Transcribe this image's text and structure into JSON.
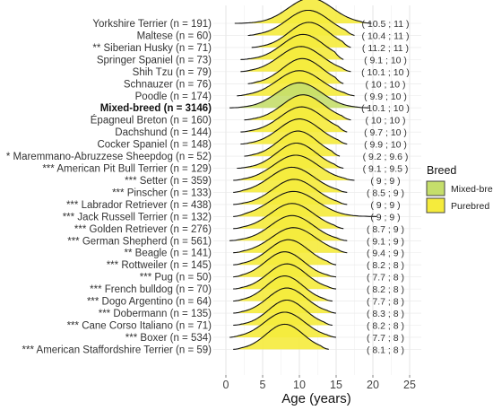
{
  "chart_data": {
    "type": "ridgeline",
    "xlabel": "Age (years)",
    "x_ticks": [
      0,
      5,
      10,
      15,
      20,
      25
    ],
    "xlim": [
      0,
      25
    ],
    "grid": true,
    "legend": {
      "title": "Breed",
      "position": "right",
      "entries": [
        {
          "label": "Mixed-breed",
          "color": "#c5de6b"
        },
        {
          "label": "Purebred",
          "color": "#f5eb3c"
        }
      ]
    },
    "series": [
      {
        "label": "Yorkshire Terrier (n = 191)",
        "stat": "( 10.5 ; 11 )",
        "group": "Purebred",
        "peak": 11.5,
        "sd": 3.0,
        "min": 1.2,
        "max": 19.8
      },
      {
        "label": "Maltese (n = 60)",
        "stat": "( 10.4 ; 11 )",
        "group": "Purebred",
        "peak": 11.2,
        "sd": 2.9,
        "min": 3.0,
        "max": 17.5
      },
      {
        "label": "** Siberian Husky (n = 71)",
        "stat": "( 11.2 ; 11 )",
        "group": "Purebred",
        "peak": 11.3,
        "sd": 2.7,
        "min": 3.5,
        "max": 17.0
      },
      {
        "label": "Springer Spaniel (n = 73)",
        "stat": "( 9.1 ; 10 )",
        "group": "Purebred",
        "peak": 10.5,
        "sd": 2.8,
        "min": 2.0,
        "max": 16.0
      },
      {
        "label": "Shih Tzu (n = 79)",
        "stat": "( 10.1 ; 10 )",
        "group": "Purebred",
        "peak": 10.2,
        "sd": 2.9,
        "min": 2.0,
        "max": 17.0
      },
      {
        "label": "Schnauzer (n = 76)",
        "stat": "( 10 ; 10 )",
        "group": "Purebred",
        "peak": 10.4,
        "sd": 2.7,
        "min": 3.0,
        "max": 16.0
      },
      {
        "label": "Poodle (n = 174)",
        "stat": "( 9.9 ; 10 )",
        "group": "Purebred",
        "peak": 10.0,
        "sd": 3.0,
        "min": 1.5,
        "max": 17.5
      },
      {
        "label": "Mixed-breed (n = 3146)",
        "stat": "( 10.1 ; 10 )",
        "group": "Mixed-breed",
        "bold": true,
        "peak": 10.0,
        "sd": 3.0,
        "min": 0.5,
        "max": 19.5
      },
      {
        "label": "Épagneul Breton (n = 160)",
        "stat": "( 10 ; 10 )",
        "group": "Purebred",
        "peak": 10.5,
        "sd": 2.8,
        "min": 2.5,
        "max": 17.0
      },
      {
        "label": "Dachshund (n = 144)",
        "stat": "( 9.7 ; 10 )",
        "group": "Purebred",
        "peak": 10.3,
        "sd": 2.9,
        "min": 2.0,
        "max": 16.5
      },
      {
        "label": "Cocker Spaniel (n = 148)",
        "stat": "( 9.9 ; 10 )",
        "group": "Purebred",
        "peak": 10.0,
        "sd": 2.8,
        "min": 2.0,
        "max": 16.5
      },
      {
        "label": "* Maremmano-Abruzzese Sheepdog (n = 52)",
        "stat": "( 9.2 ; 9.6 )",
        "group": "Purebred",
        "peak": 9.8,
        "sd": 2.6,
        "min": 2.5,
        "max": 15.5
      },
      {
        "label": "*** American Pit Bull Terrier (n = 129)",
        "stat": "( 9.1 ; 9.5 )",
        "group": "Purebred",
        "peak": 9.6,
        "sd": 2.7,
        "min": 1.5,
        "max": 16.0
      },
      {
        "label": "*** Setter (n = 359)",
        "stat": "( 9 ; 9 )",
        "group": "Purebred",
        "peak": 9.5,
        "sd": 3.0,
        "min": 1.0,
        "max": 17.5
      },
      {
        "label": "*** Pinscher (n = 133)",
        "stat": "( 8.5 ; 9 )",
        "group": "Purebred",
        "peak": 9.0,
        "sd": 3.0,
        "min": 1.0,
        "max": 16.5
      },
      {
        "label": "*** Labrador Retriever (n = 438)",
        "stat": "( 9 ; 9 )",
        "group": "Purebred",
        "peak": 9.3,
        "sd": 2.9,
        "min": 1.0,
        "max": 16.5
      },
      {
        "label": "*** Jack Russell Terrier (n = 132)",
        "stat": "( 9 ; 9 )",
        "group": "Purebred",
        "peak": 9.2,
        "sd": 3.2,
        "min": 1.0,
        "max": 20.5
      },
      {
        "label": "*** Golden Retriever (n = 276)",
        "stat": "( 8.7 ; 9 )",
        "group": "Purebred",
        "peak": 9.0,
        "sd": 2.9,
        "min": 1.0,
        "max": 16.0
      },
      {
        "label": "*** German Shepherd (n = 561)",
        "stat": "( 9.1 ; 9 )",
        "group": "Purebred",
        "peak": 9.0,
        "sd": 2.9,
        "min": 0.5,
        "max": 16.5
      },
      {
        "label": "** Beagle (n = 141)",
        "stat": "( 9.4 ; 9 )",
        "group": "Purebred",
        "peak": 9.2,
        "sd": 3.0,
        "min": 1.0,
        "max": 16.5
      },
      {
        "label": "*** Rottweiler (n = 145)",
        "stat": "( 8.2 ; 8 )",
        "group": "Purebred",
        "peak": 8.5,
        "sd": 2.7,
        "min": 1.0,
        "max": 15.0
      },
      {
        "label": "*** Pug (n = 50)",
        "stat": "( 7.7 ; 8 )",
        "group": "Purebred",
        "peak": 8.0,
        "sd": 2.6,
        "min": 1.0,
        "max": 15.0
      },
      {
        "label": "*** French bulldog (n = 70)",
        "stat": "( 8.2 ; 8 )",
        "group": "Purebred",
        "peak": 8.3,
        "sd": 2.6,
        "min": 1.0,
        "max": 15.0
      },
      {
        "label": "*** Dogo Argentino (n = 64)",
        "stat": "( 7.7 ; 8 )",
        "group": "Purebred",
        "peak": 8.0,
        "sd": 2.5,
        "min": 1.0,
        "max": 14.5
      },
      {
        "label": "*** Dobermann (n = 135)",
        "stat": "( 8.3 ; 8 )",
        "group": "Purebred",
        "peak": 8.3,
        "sd": 2.6,
        "min": 1.0,
        "max": 15.0
      },
      {
        "label": "*** Cane Corso Italiano (n = 71)",
        "stat": "( 8.2 ; 8 )",
        "group": "Purebred",
        "peak": 8.3,
        "sd": 2.5,
        "min": 1.0,
        "max": 14.5
      },
      {
        "label": "*** Boxer (n = 534)",
        "stat": "( 7.7 ; 8 )",
        "group": "Purebred",
        "peak": 8.0,
        "sd": 2.7,
        "min": 0.5,
        "max": 15.0
      },
      {
        "label": "*** American Staffordshire Terrier (n = 59)",
        "stat": "( 8.1 ; 8 )",
        "group": "Purebred",
        "peak": 8.0,
        "sd": 2.5,
        "min": 1.0,
        "max": 14.0
      }
    ]
  }
}
